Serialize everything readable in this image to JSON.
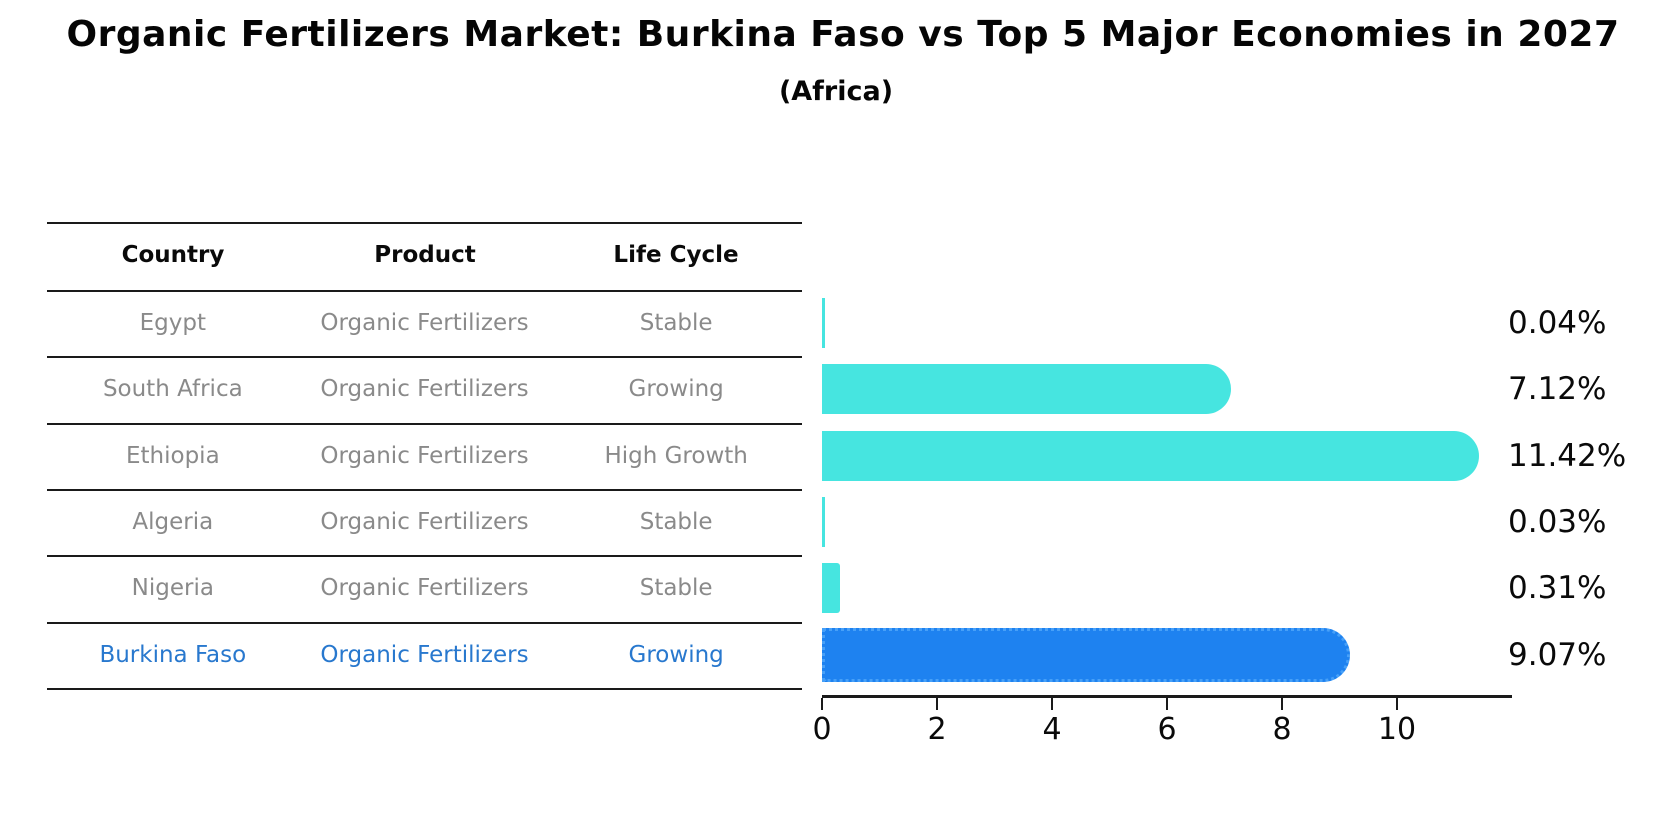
{
  "title": "Organic Fertilizers Market: Burkina Faso vs Top 5 Major Economies in 2027",
  "subtitle": "(Africa)",
  "table": {
    "columns": [
      "Country",
      "Product",
      "Life Cycle"
    ],
    "rows": [
      {
        "country": "Egypt",
        "product": "Organic Fertilizers",
        "life_cycle": "Stable",
        "highlighted": false
      },
      {
        "country": "South Africa",
        "product": "Organic Fertilizers",
        "life_cycle": "Growing",
        "highlighted": false
      },
      {
        "country": "Ethiopia",
        "product": "Organic Fertilizers",
        "life_cycle": "High Growth",
        "highlighted": false
      },
      {
        "country": "Algeria",
        "product": "Organic Fertilizers",
        "life_cycle": "Stable",
        "highlighted": false
      },
      {
        "country": "Nigeria",
        "product": "Organic Fertilizers",
        "life_cycle": "Stable",
        "highlighted": false
      },
      {
        "country": "Burkina Faso",
        "product": "Organic Fertilizers",
        "life_cycle": "Growing",
        "highlighted": true
      }
    ]
  },
  "chart_data": {
    "type": "bar",
    "orientation": "horizontal",
    "title": "Organic Fertilizers Market: Burkina Faso vs Top 5 Major Economies in 2027",
    "subtitle": "(Africa)",
    "categories": [
      "Egypt",
      "South Africa",
      "Ethiopia",
      "Algeria",
      "Nigeria",
      "Burkina Faso"
    ],
    "values": [
      0.04,
      7.12,
      11.42,
      0.03,
      0.31,
      9.07
    ],
    "value_labels": [
      "0.04%",
      "7.12%",
      "11.42%",
      "0.03%",
      "0.31%",
      "9.07%"
    ],
    "xlabel": "",
    "ylabel": "",
    "xlim": [
      0,
      12
    ],
    "xticks": [
      0,
      2,
      4,
      6,
      8,
      10
    ],
    "grid": false,
    "legend": false,
    "highlight_index": 5
  },
  "colors": {
    "bar": "#46E5E0",
    "highlight_bar": "#1E82F0",
    "highlight_border": "#47A0F8",
    "highlight_text": "#2878CE",
    "row_text": "#8A8A8A",
    "header_text": "#0A0A0A",
    "axis": "#1A1A1A"
  }
}
